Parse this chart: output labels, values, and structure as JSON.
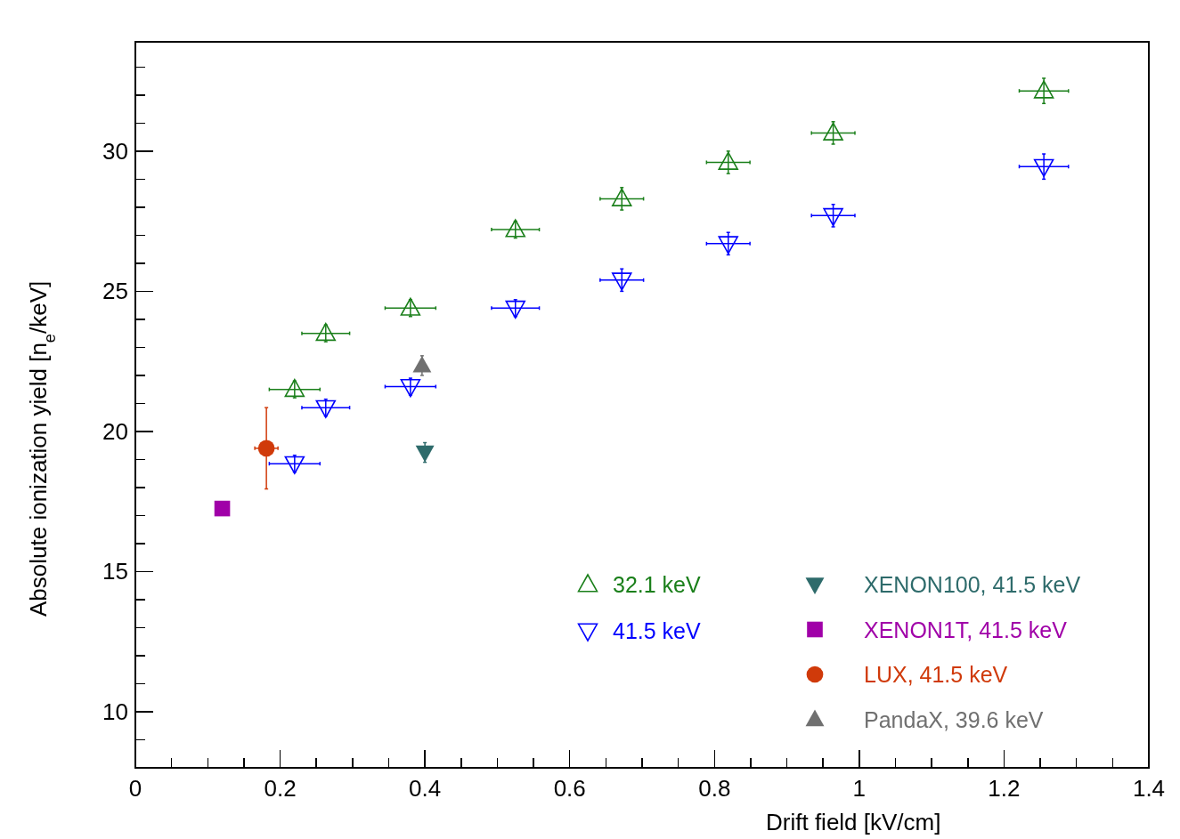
{
  "chart_data": {
    "type": "scatter",
    "xlabel": "Drift field [kV/cm]",
    "ylabel": "Absolute ionization yield [n$_{e}$/keV]",
    "xlim": [
      0,
      1.4
    ],
    "ylim": [
      8,
      33.9
    ],
    "xticks": [
      0,
      {
        "value": 0.05,
        "label": null
      },
      {
        "value": 0.1,
        "label": null
      },
      {
        "value": 0.15,
        "label": null
      },
      {
        "value": 0.2,
        "label": "0.2"
      },
      {
        "value": 0.25,
        "label": null
      },
      {
        "value": 0.3,
        "label": null
      },
      {
        "value": 0.35,
        "label": null
      },
      {
        "value": 0.4,
        "label": "0.4"
      },
      {
        "value": 0.45,
        "label": null
      },
      {
        "value": 0.5,
        "label": null
      },
      {
        "value": 0.55,
        "label": null
      },
      {
        "value": 0.6,
        "label": "0.6"
      },
      {
        "value": 0.65,
        "label": null
      },
      {
        "value": 0.7,
        "label": null
      },
      {
        "value": 0.75,
        "label": null
      },
      {
        "value": 0.8,
        "label": "0.8"
      },
      {
        "value": 0.85,
        "label": null
      },
      {
        "value": 0.9,
        "label": null
      },
      {
        "value": 0.95,
        "label": null
      },
      1,
      {
        "value": 1.05,
        "label": null
      },
      {
        "value": 1.1,
        "label": null
      },
      {
        "value": 1.15,
        "label": null
      },
      {
        "value": 1.2,
        "label": "1.2"
      },
      {
        "value": 1.25,
        "label": null
      },
      {
        "value": 1.3,
        "label": null
      },
      {
        "value": 1.35,
        "label": null
      },
      {
        "value": 1.4,
        "label": "1.4"
      }
    ],
    "yticks": [
      {
        "value": 9,
        "label": null
      },
      10,
      {
        "value": 11,
        "label": null
      },
      {
        "value": 12,
        "label": null
      },
      {
        "value": 13,
        "label": null
      },
      {
        "value": 14,
        "label": null
      },
      15,
      {
        "value": 16,
        "label": null
      },
      {
        "value": 17,
        "label": null
      },
      {
        "value": 18,
        "label": null
      },
      {
        "value": 19,
        "label": null
      },
      20,
      {
        "value": 21,
        "label": null
      },
      {
        "value": 22,
        "label": null
      },
      {
        "value": 23,
        "label": null
      },
      {
        "value": 24,
        "label": null
      },
      25,
      {
        "value": 26,
        "label": null
      },
      {
        "value": 27,
        "label": null
      },
      {
        "value": 28,
        "label": null
      },
      {
        "value": 29,
        "label": null
      },
      30,
      {
        "value": 31,
        "label": null
      },
      {
        "value": 32,
        "label": null
      },
      {
        "value": 33,
        "label": null
      }
    ],
    "grid": false,
    "legend": "bottom right",
    "series": [
      {
        "name": "32.1 keV",
        "color": "#1a7f1a",
        "marker": "triangle-open",
        "x": [
          0.22,
          0.263,
          0.38,
          0.525,
          0.672,
          0.819,
          0.964,
          1.255
        ],
        "values": [
          21.5,
          23.5,
          24.4,
          27.2,
          28.3,
          29.6,
          30.65,
          32.15
        ],
        "errors": [
          0.3,
          0.3,
          0.3,
          0.3,
          0.4,
          0.4,
          0.4,
          0.45
        ],
        "xerrors": [
          0.035,
          0.033,
          0.035,
          0.033,
          0.03,
          0.03,
          0.03,
          0.034
        ]
      },
      {
        "name": "41.5 keV",
        "color": "#0000ff",
        "marker": "triangle-down-open",
        "x": [
          0.22,
          0.263,
          0.38,
          0.525,
          0.672,
          0.819,
          0.964,
          1.255
        ],
        "values": [
          18.85,
          20.85,
          21.6,
          24.4,
          25.4,
          26.7,
          27.7,
          29.45
        ],
        "errors": [
          0.3,
          0.3,
          0.3,
          0.3,
          0.4,
          0.4,
          0.4,
          0.45
        ],
        "xerrors": [
          0.035,
          0.033,
          0.035,
          0.033,
          0.03,
          0.03,
          0.03,
          0.034
        ]
      },
      {
        "name": "XENON100, 41.5 keV",
        "color": "#2e6b6b",
        "marker": "triangle-down",
        "x": [
          0.4
        ],
        "values": [
          19.25
        ],
        "errors": [
          0.35
        ]
      },
      {
        "name": "XENON1T, 41.5 keV",
        "color": "#a000a8",
        "marker": "square",
        "x": [
          0.12
        ],
        "values": [
          17.25
        ]
      },
      {
        "name": "LUX, 41.5 keV",
        "color": "#d03a0a",
        "marker": "circle",
        "x": [
          0.181
        ],
        "values": [
          19.4
        ],
        "errors": [
          1.45
        ],
        "xerrors": [
          0.016
        ]
      },
      {
        "name": "PandaX, 39.6 keV",
        "color": "#707070",
        "marker": "triangle",
        "x": [
          0.396
        ],
        "values": [
          22.35
        ],
        "errors": [
          0.35
        ]
      }
    ]
  }
}
